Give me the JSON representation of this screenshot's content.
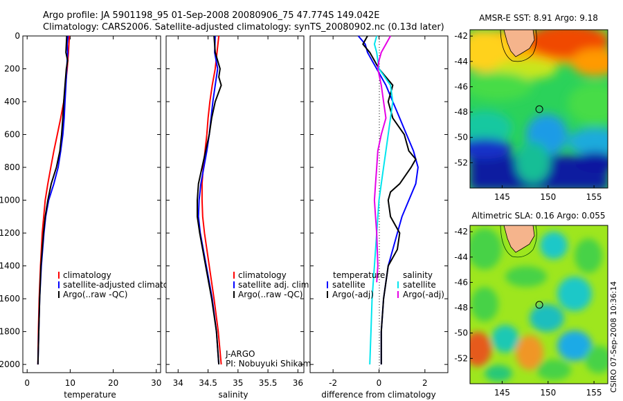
{
  "figure": {
    "title_line1": "Argo profile: JA 5901198_95 01-Sep-2008 20080906_75 47.774S 149.042E",
    "title_line2": "Climatology: CARS2006. Satellite-adjusted climatology: synTS_20080902.nc (0.13d later)",
    "side_label": "CSIRO 07-Sep-2008 10:36:14",
    "credit_line1": "J-ARGO",
    "credit_line2": "PI: Nobuyuki Shikama"
  },
  "colors": {
    "climatology": "#ff0000",
    "satellite": "#0000ff",
    "argo": "#000000",
    "sal_satellite": "#00e5ee",
    "sal_argo": "#e600e6"
  },
  "chart_data": [
    {
      "type": "line",
      "panel": "temperature",
      "xlabel": "temperature",
      "ylabel": "",
      "xlim": [
        -1,
        31
      ],
      "ylim": [
        2050,
        0
      ],
      "xticks": [
        0,
        10,
        20,
        30
      ],
      "yticks": [
        0,
        200,
        400,
        600,
        800,
        1000,
        1200,
        1400,
        1600,
        1800,
        2000
      ],
      "legend": [
        "climatology",
        "satellite-adjusted climatology",
        "Argo(..raw -QC)"
      ],
      "series": [
        {
          "name": "climatology",
          "color": "#ff0000",
          "depth": [
            0,
            100,
            200,
            400,
            500,
            600,
            700,
            800,
            900,
            1000,
            1200,
            1400,
            1600,
            1800,
            2000
          ],
          "values": [
            9.8,
            9.6,
            9.3,
            8.5,
            7.8,
            7.0,
            6.2,
            5.5,
            4.8,
            4.2,
            3.5,
            3.1,
            2.8,
            2.6,
            2.5
          ]
        },
        {
          "name": "satellite-adjusted climatology",
          "color": "#0000ff",
          "depth": [
            0,
            50,
            100,
            200,
            300,
            400,
            500,
            600,
            700,
            800,
            900,
            1000,
            1100,
            1200,
            1400,
            1600,
            1800,
            2000
          ],
          "values": [
            9.5,
            9.3,
            9.4,
            9.2,
            9.0,
            8.8,
            8.6,
            8.3,
            7.8,
            7.2,
            6.2,
            5.0,
            4.3,
            3.9,
            3.3,
            2.9,
            2.7,
            2.5
          ]
        },
        {
          "name": "Argo(..raw -QC)",
          "color": "#000000",
          "depth": [
            0,
            50,
            100,
            150,
            200,
            300,
            400,
            500,
            600,
            700,
            800,
            900,
            1000,
            1100,
            1200,
            1400,
            1600,
            1800,
            2000
          ],
          "values": [
            9.2,
            9.1,
            9.0,
            9.4,
            9.1,
            8.8,
            8.5,
            8.3,
            8.0,
            7.6,
            6.8,
            5.6,
            4.8,
            4.2,
            3.8,
            3.2,
            2.9,
            2.7,
            2.5
          ]
        }
      ]
    },
    {
      "type": "line",
      "panel": "salinity",
      "xlabel": "salinity",
      "ylabel": "",
      "xlim": [
        33.8,
        36.1
      ],
      "ylim": [
        2050,
        0
      ],
      "xticks": [
        34,
        34.5,
        35,
        35.5,
        36
      ],
      "legend": [
        "climatology",
        "satellite adj. clim.",
        "Argo(..raw -QC)"
      ],
      "series": [
        {
          "name": "climatology",
          "color": "#ff0000",
          "depth": [
            0,
            100,
            200,
            300,
            400,
            500,
            600,
            700,
            800,
            900,
            1000,
            1100,
            1200,
            1400,
            1600,
            1800,
            2000
          ],
          "values": [
            34.68,
            34.65,
            34.62,
            34.57,
            34.53,
            34.5,
            34.48,
            34.45,
            34.42,
            34.4,
            34.4,
            34.41,
            34.44,
            34.52,
            34.6,
            34.67,
            34.72
          ]
        },
        {
          "name": "satellite adj. clim.",
          "color": "#0000ff",
          "depth": [
            0,
            100,
            200,
            300,
            400,
            500,
            600,
            700,
            800,
            900,
            1000,
            1100,
            1200,
            1400,
            1600,
            1800,
            2000
          ],
          "values": [
            34.62,
            34.61,
            34.66,
            34.62,
            34.58,
            34.55,
            34.52,
            34.48,
            34.43,
            34.38,
            34.35,
            34.34,
            34.37,
            34.47,
            34.57,
            34.64,
            34.68
          ]
        },
        {
          "name": "Argo(..raw -QC)",
          "color": "#000000",
          "depth": [
            0,
            100,
            200,
            250,
            300,
            400,
            500,
            600,
            700,
            800,
            900,
            1000,
            1100,
            1200,
            1400,
            1600,
            1800,
            2000
          ],
          "values": [
            34.6,
            34.62,
            34.7,
            34.68,
            34.72,
            34.62,
            34.56,
            34.52,
            34.46,
            34.4,
            34.34,
            34.32,
            34.32,
            34.36,
            34.46,
            34.56,
            34.64,
            34.68
          ]
        }
      ]
    },
    {
      "type": "line",
      "panel": "difference",
      "xlabel": "difference from climatology",
      "ylabel": "",
      "xlim": [
        -3,
        3
      ],
      "ylim": [
        2050,
        0
      ],
      "xticks": [
        -2,
        0,
        2
      ],
      "legend_temperature_heading": "temperature",
      "legend_salinity_heading": "salinity",
      "legend": [
        "satellite",
        "Argo(-adj)",
        "satellite",
        "Argo(-adj)"
      ],
      "series": [
        {
          "name": "satellite",
          "group": "temperature",
          "color": "#0000ff",
          "depth": [
            0,
            50,
            100,
            150,
            200,
            300,
            400,
            500,
            600,
            700,
            800,
            900,
            1000,
            1100,
            1200,
            1400,
            1600,
            1800,
            2000
          ],
          "values": [
            -0.9,
            -0.6,
            -0.5,
            -0.3,
            -0.1,
            0.3,
            0.6,
            0.9,
            1.2,
            1.5,
            1.7,
            1.6,
            1.3,
            1.0,
            0.8,
            0.4,
            0.2,
            0.1,
            0.1
          ]
        },
        {
          "name": "Argo(-adj)",
          "group": "temperature",
          "color": "#000000",
          "depth": [
            0,
            50,
            100,
            150,
            200,
            300,
            400,
            500,
            600,
            700,
            750,
            800,
            900,
            950,
            1000,
            1100,
            1200,
            1300,
            1400,
            1500,
            1600,
            1800,
            2000
          ],
          "values": [
            -0.5,
            -0.7,
            -0.4,
            -0.2,
            0,
            0.6,
            0.4,
            0.6,
            1.1,
            1.3,
            1.6,
            1.4,
            0.9,
            0.5,
            0.4,
            0.5,
            0.9,
            0.8,
            0.4,
            0.3,
            0.2,
            0.1,
            0.1
          ]
        },
        {
          "name": "satellite",
          "group": "salinity",
          "color": "#00e5ee",
          "depth": [
            0,
            50,
            100,
            200,
            300,
            400,
            500,
            600,
            700,
            800,
            900,
            1000,
            1200,
            1400,
            1600,
            1800,
            2000
          ],
          "values": [
            -0.1,
            -0.2,
            -0.1,
            0,
            0.5,
            0.6,
            0.5,
            0.4,
            0.3,
            0.2,
            0.1,
            0,
            -0.1,
            -0.2,
            -0.3,
            -0.35,
            -0.4
          ]
        },
        {
          "name": "Argo(-adj)",
          "group": "salinity",
          "color": "#e600e6",
          "depth": [
            0,
            50,
            100,
            150,
            200,
            300,
            400,
            500,
            600,
            700,
            800,
            900,
            1000,
            1100,
            1200,
            1400,
            1500
          ],
          "values": [
            0.5,
            0.3,
            0.1,
            0,
            -0.05,
            0.1,
            0.2,
            0.3,
            0.1,
            -0.05,
            -0.1,
            -0.15,
            -0.2,
            -0.15,
            -0.1,
            -0.05,
            -0.1
          ]
        }
      ]
    },
    {
      "type": "heatmap",
      "panel": "sst_map",
      "title": "AMSR-E SST: 8.91  Argo: 9.18",
      "xlim": [
        141.5,
        156.5
      ],
      "ylim": [
        -54,
        -41.5
      ],
      "xticks": [
        145,
        150,
        155
      ],
      "xtick_labels": [
        "145",
        "150",
        "155"
      ],
      "yticks": [
        -42,
        -44,
        -46,
        -48,
        -50,
        -52
      ],
      "ytick_labels": [
        "-42",
        "-44",
        "-46",
        "-48",
        "-50",
        "-52"
      ],
      "marker": {
        "lon": 149.042,
        "lat": -47.774
      }
    },
    {
      "type": "heatmap",
      "panel": "sla_map",
      "title": "Altimetric SLA: 0.16  Argo: 0.055",
      "xlim": [
        141.5,
        156.5
      ],
      "ylim": [
        -54,
        -41.5
      ],
      "xticks": [
        145,
        150,
        155
      ],
      "xtick_labels": [
        "145",
        "150",
        "155"
      ],
      "yticks": [
        -42,
        -44,
        -46,
        -48,
        -50,
        -52
      ],
      "ytick_labels": [
        "-42",
        "-44",
        "-46",
        "-48",
        "-50",
        "-52"
      ],
      "marker": {
        "lon": 149.042,
        "lat": -47.774
      }
    }
  ]
}
